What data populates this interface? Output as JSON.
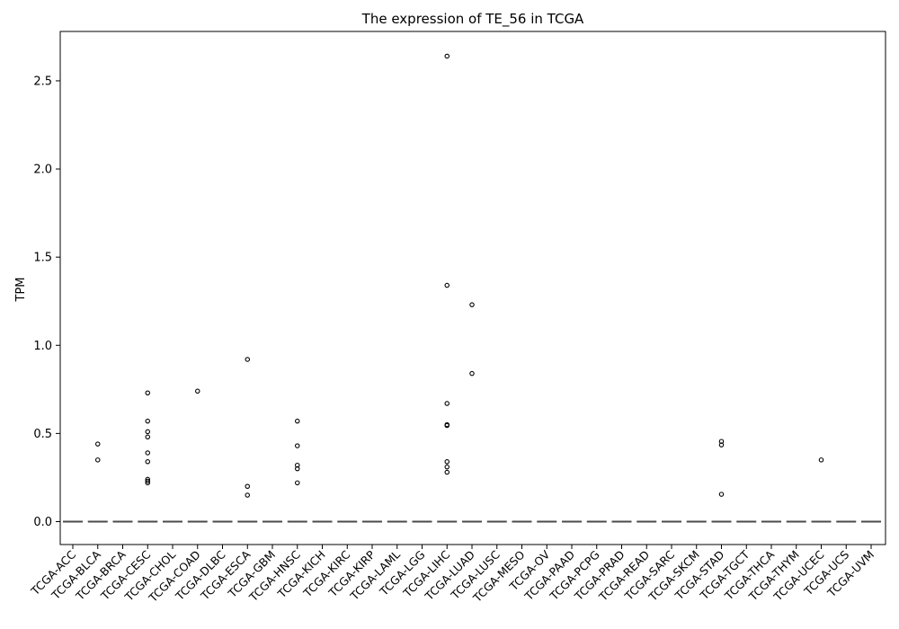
{
  "chart_data": {
    "type": "boxplot",
    "title": "The expression of TE_56 in TCGA",
    "xlabel": "",
    "ylabel": "TPM",
    "ylim": [
      -0.13,
      2.78
    ],
    "yticks": [
      0.0,
      0.5,
      1.0,
      1.5,
      2.0,
      2.5
    ],
    "ytick_labels": [
      "0.0",
      "0.5",
      "1.0",
      "1.5",
      "2.0",
      "2.5"
    ],
    "grid": false,
    "legend": "none",
    "box_color": "#4a4a4a",
    "categories": [
      "TCGA-ACC",
      "TCGA-BLCA",
      "TCGA-BRCA",
      "TCGA-CESC",
      "TCGA-CHOL",
      "TCGA-COAD",
      "TCGA-DLBC",
      "TCGA-ESCA",
      "TCGA-GBM",
      "TCGA-HNSC",
      "TCGA-KICH",
      "TCGA-KIRC",
      "TCGA-KIRP",
      "TCGA-LAML",
      "TCGA-LGG",
      "TCGA-LIHC",
      "TCGA-LUAD",
      "TCGA-LUSC",
      "TCGA-MESO",
      "TCGA-OV",
      "TCGA-PAAD",
      "TCGA-PCPG",
      "TCGA-PRAD",
      "TCGA-READ",
      "TCGA-SARC",
      "TCGA-SKCM",
      "TCGA-STAD",
      "TCGA-TGCT",
      "TCGA-THCA",
      "TCGA-THYM",
      "TCGA-UCEC",
      "TCGA-UCS",
      "TCGA-UVM"
    ],
    "medians": [
      0,
      0,
      0,
      0,
      0,
      0,
      0,
      0,
      0,
      0,
      0,
      0,
      0,
      0,
      0,
      0,
      0,
      0,
      0,
      0,
      0,
      0,
      0,
      0,
      0,
      0,
      0,
      0,
      0,
      0,
      0,
      0,
      0
    ],
    "outliers": [
      [],
      [
        0.44,
        0.35
      ],
      [],
      [
        0.73,
        0.57,
        0.51,
        0.48,
        0.39,
        0.34,
        0.24,
        0.23,
        0.22
      ],
      [],
      [
        0.74
      ],
      [],
      [
        0.92,
        0.2,
        0.15
      ],
      [],
      [
        0.57,
        0.43,
        0.32,
        0.3,
        0.22
      ],
      [],
      [],
      [],
      [],
      [],
      [
        2.64,
        1.34,
        0.67,
        0.55,
        0.545,
        0.34,
        0.31,
        0.28
      ],
      [
        1.23,
        0.84
      ],
      [],
      [],
      [],
      [],
      [],
      [],
      [],
      [],
      [],
      [
        0.455,
        0.435,
        0.155
      ],
      [],
      [],
      [],
      [
        0.35
      ],
      [],
      []
    ]
  }
}
